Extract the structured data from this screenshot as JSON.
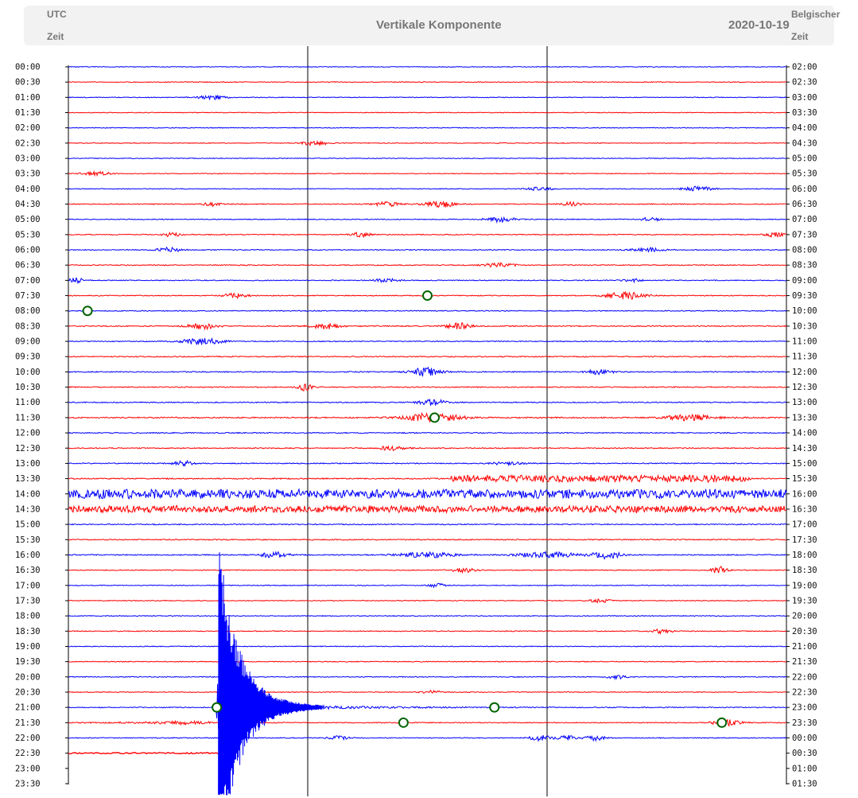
{
  "header": {
    "left_line1": "UTC",
    "left_line2": "Zeit",
    "title": "Vertikale Komponente",
    "date": "2020-10-19",
    "right_line1": "Belgischer",
    "right_line2": "Zeit"
  },
  "colors": {
    "even_trace": "#0000ff",
    "odd_trace": "#ff0000",
    "marker_stroke": "#006400",
    "axis": "#000000"
  },
  "chart_data": {
    "type": "line",
    "title": "Vertikale Komponente",
    "date": "2020-10-19",
    "left_axis_label": "UTC Zeit",
    "right_axis_label": "Belgischer Zeit",
    "row_interval_minutes": 30,
    "minute_dividers": [
      10,
      20
    ],
    "left_ticks": [
      "00:00",
      "00:30",
      "01:00",
      "01:30",
      "02:00",
      "02:30",
      "03:00",
      "03:30",
      "04:00",
      "04:30",
      "05:00",
      "05:30",
      "06:00",
      "06:30",
      "07:00",
      "07:30",
      "08:00",
      "08:30",
      "09:00",
      "09:30",
      "10:00",
      "10:30",
      "11:00",
      "11:30",
      "12:00",
      "12:30",
      "13:00",
      "13:30",
      "14:00",
      "14:30",
      "15:00",
      "15:30",
      "16:00",
      "16:30",
      "17:00",
      "17:30",
      "18:00",
      "18:30",
      "19:00",
      "19:30",
      "20:00",
      "20:30",
      "21:00",
      "21:30",
      "22:00",
      "22:30",
      "23:00",
      "23:30"
    ],
    "right_ticks": [
      "02:00",
      "02:30",
      "03:00",
      "03:30",
      "04:00",
      "04:30",
      "05:00",
      "05:30",
      "06:00",
      "06:30",
      "07:00",
      "07:30",
      "08:00",
      "08:30",
      "09:00",
      "09:30",
      "10:00",
      "10:30",
      "11:00",
      "11:30",
      "12:00",
      "12:30",
      "13:00",
      "13:30",
      "14:00",
      "14:30",
      "15:00",
      "15:30",
      "16:00",
      "16:30",
      "17:00",
      "17:30",
      "18:00",
      "18:30",
      "19:00",
      "19:30",
      "20:00",
      "20:30",
      "21:00",
      "21:30",
      "22:00",
      "22:30",
      "23:00",
      "23:30",
      "00:00",
      "00:30",
      "01:00",
      "01:30"
    ],
    "traces_shown": 45,
    "noise_level": [
      1,
      1,
      1,
      1,
      1,
      1,
      1,
      1,
      1,
      1.2,
      1.2,
      1.2,
      1.2,
      1.2,
      1.2,
      1.2,
      1.2,
      1.4,
      1.2,
      1.4,
      1.4,
      1.4,
      1.4,
      1.6,
      1.4,
      1.4,
      1.4,
      1.6,
      2.4,
      2.2,
      1.4,
      1.4,
      1.4,
      1.2,
      1.1,
      1.1,
      1.1,
      1.1,
      1.1,
      1.1,
      1.1,
      1.1,
      1.2,
      1.2,
      1.2
    ],
    "bursts": [
      {
        "row": 2,
        "minute": 6,
        "amp": 6,
        "width": 0.6
      },
      {
        "row": 5,
        "minute": 10.3,
        "amp": 7,
        "width": 0.5
      },
      {
        "row": 7,
        "minute": 1.2,
        "amp": 5,
        "width": 0.6
      },
      {
        "row": 8,
        "minute": 19.7,
        "amp": 5,
        "width": 0.5
      },
      {
        "row": 8,
        "minute": 26.3,
        "amp": 7,
        "width": 0.6
      },
      {
        "row": 9,
        "minute": 6,
        "amp": 6,
        "width": 0.3
      },
      {
        "row": 9,
        "minute": 13.3,
        "amp": 6,
        "width": 0.5
      },
      {
        "row": 9,
        "minute": 15.5,
        "amp": 10,
        "width": 0.6
      },
      {
        "row": 9,
        "minute": 21,
        "amp": 5,
        "width": 0.4
      },
      {
        "row": 10,
        "minute": 18,
        "amp": 7,
        "width": 0.6
      },
      {
        "row": 10,
        "minute": 24.3,
        "amp": 5,
        "width": 0.4
      },
      {
        "row": 11,
        "minute": 4.3,
        "amp": 5,
        "width": 0.4
      },
      {
        "row": 11,
        "minute": 12.2,
        "amp": 6,
        "width": 0.4
      },
      {
        "row": 11,
        "minute": 29.5,
        "amp": 6,
        "width": 0.4
      },
      {
        "row": 12,
        "minute": 4.2,
        "amp": 6,
        "width": 0.5
      },
      {
        "row": 12,
        "minute": 24.2,
        "amp": 6,
        "width": 0.6
      },
      {
        "row": 13,
        "minute": 18,
        "amp": 6,
        "width": 0.6
      },
      {
        "row": 14,
        "minute": 0.3,
        "amp": 8,
        "width": 0.3
      },
      {
        "row": 14,
        "minute": 13.3,
        "amp": 5,
        "width": 0.5
      },
      {
        "row": 14,
        "minute": 23.5,
        "amp": 5,
        "width": 0.4
      },
      {
        "row": 15,
        "minute": 7,
        "amp": 7,
        "width": 0.5
      },
      {
        "row": 15,
        "minute": 23.3,
        "amp": 10,
        "width": 0.8
      },
      {
        "row": 17,
        "minute": 5.6,
        "amp": 8,
        "width": 0.6
      },
      {
        "row": 17,
        "minute": 10.7,
        "amp": 8,
        "width": 0.6
      },
      {
        "row": 17,
        "minute": 16.3,
        "amp": 9,
        "width": 0.5
      },
      {
        "row": 18,
        "minute": 5.6,
        "amp": 9,
        "width": 0.8
      },
      {
        "row": 20,
        "minute": 14.9,
        "amp": 12,
        "width": 0.6
      },
      {
        "row": 20,
        "minute": 22.2,
        "amp": 7,
        "width": 0.5
      },
      {
        "row": 21,
        "minute": 9.9,
        "amp": 10,
        "width": 0.3
      },
      {
        "row": 22,
        "minute": 15.2,
        "amp": 8,
        "width": 0.6
      },
      {
        "row": 23,
        "minute": 15.2,
        "amp": 12,
        "width": 1.2
      },
      {
        "row": 23,
        "minute": 26,
        "amp": 8,
        "width": 1
      },
      {
        "row": 25,
        "minute": 13.5,
        "amp": 6,
        "width": 0.6
      },
      {
        "row": 26,
        "minute": 4.8,
        "amp": 7,
        "width": 0.4
      },
      {
        "row": 26,
        "minute": 18.4,
        "amp": 5,
        "width": 0.6
      },
      {
        "row": 32,
        "minute": 8.6,
        "amp": 8,
        "width": 0.6
      },
      {
        "row": 32,
        "minute": 15,
        "amp": 7,
        "width": 1.2
      },
      {
        "row": 32,
        "minute": 20,
        "amp": 8,
        "width": 1.2
      },
      {
        "row": 32,
        "minute": 22.5,
        "amp": 10,
        "width": 0.6
      },
      {
        "row": 33,
        "minute": 16.5,
        "amp": 6,
        "width": 0.5
      },
      {
        "row": 33,
        "minute": 27.2,
        "amp": 10,
        "width": 0.3
      },
      {
        "row": 34,
        "minute": 15.4,
        "amp": 6,
        "width": 0.3
      },
      {
        "row": 35,
        "minute": 22.2,
        "amp": 6,
        "width": 0.4
      },
      {
        "row": 37,
        "minute": 24.8,
        "amp": 6,
        "width": 0.4
      },
      {
        "row": 40,
        "minute": 22.9,
        "amp": 5,
        "width": 0.4
      },
      {
        "row": 41,
        "minute": 15.2,
        "amp": 4,
        "width": 0.4
      },
      {
        "row": 43,
        "minute": 27.5,
        "amp": 8,
        "width": 0.6
      },
      {
        "row": 44,
        "minute": 11.3,
        "amp": 5,
        "width": 0.4
      },
      {
        "row": 44,
        "minute": 19.7,
        "amp": 9,
        "width": 0.4
      },
      {
        "row": 44,
        "minute": 20.8,
        "amp": 7,
        "width": 0.4
      },
      {
        "row": 44,
        "minute": 22,
        "amp": 7,
        "width": 0.4
      }
    ],
    "noisy_segments": [
      {
        "row": 27,
        "start_minute": 16,
        "end_minute": 28.5,
        "amp": 9
      },
      {
        "row": 28,
        "start_minute": 0,
        "end_minute": 30,
        "amp": 11
      },
      {
        "row": 29,
        "start_minute": 0,
        "end_minute": 30,
        "amp": 8
      }
    ],
    "earthquake": {
      "row": 42,
      "minute": 6.2,
      "peak_amp": 200,
      "coda_minutes": 10
    },
    "markers": [
      {
        "row": 15,
        "minute": 15
      },
      {
        "row": 16,
        "minute": 0.8
      },
      {
        "row": 23,
        "minute": 15.3
      },
      {
        "row": 42,
        "minute": 6.2
      },
      {
        "row": 42,
        "minute": 17.8
      },
      {
        "row": 43,
        "minute": 14
      },
      {
        "row": 43,
        "minute": 27.3
      }
    ]
  }
}
